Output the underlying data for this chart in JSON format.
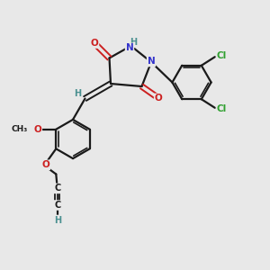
{
  "background_color": "#e8e8e8",
  "atom_colors": {
    "C": "#1a1a1a",
    "H": "#4a9090",
    "N": "#3333cc",
    "O": "#cc2020",
    "Cl": "#30a030"
  },
  "figsize": [
    3.0,
    3.0
  ],
  "dpi": 100
}
